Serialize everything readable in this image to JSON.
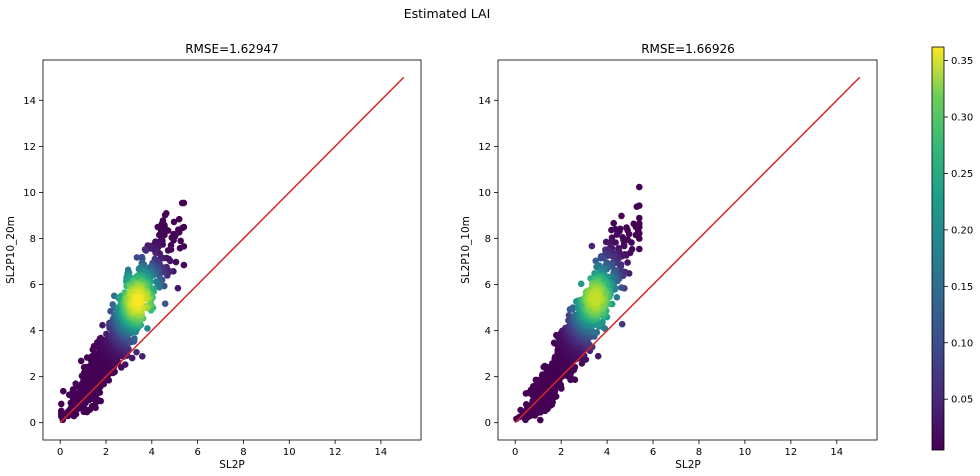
{
  "figure": {
    "suptitle": "Estimated LAI"
  },
  "colorbar": {
    "ticks": [
      0.05,
      0.1,
      0.15,
      0.2,
      0.25,
      0.3,
      0.35
    ],
    "tick_labels": [
      "0.05",
      "0.10",
      "0.15",
      "0.20",
      "0.25",
      "0.30",
      "0.35"
    ],
    "range": [
      0.005,
      0.362
    ],
    "colormap": "viridis"
  },
  "chart_data": [
    {
      "type": "scatter",
      "title": "RMSE=1.62947",
      "xlabel": "SL2P",
      "ylabel": "SL2P10_20m",
      "xlim": [
        -0.75,
        15.75
      ],
      "ylim": [
        -0.75,
        15.75
      ],
      "xticks": [
        0,
        2,
        4,
        6,
        8,
        10,
        12,
        14
      ],
      "yticks": [
        0,
        2,
        4,
        6,
        8,
        10,
        12,
        14
      ],
      "grid": false,
      "reference_line": {
        "x": [
          0,
          15
        ],
        "y": [
          0,
          15
        ],
        "color": "#d62728"
      },
      "cloud": {
        "ridge": [
          [
            0.3,
            0.4
          ],
          [
            1.5,
            2.0
          ],
          [
            2.5,
            3.8
          ],
          [
            3.3,
            5.2
          ],
          [
            4.3,
            7.0
          ],
          [
            5.3,
            8.2
          ]
        ],
        "peak": [
          3.4,
          5.3
        ],
        "color_range": [
          0.005,
          0.36
        ]
      }
    },
    {
      "type": "scatter",
      "title": "RMSE=1.66926",
      "xlabel": "SL2P",
      "ylabel": "SL2P10_10m",
      "xlim": [
        -0.75,
        15.75
      ],
      "ylim": [
        -0.75,
        15.75
      ],
      "xticks": [
        0,
        2,
        4,
        6,
        8,
        10,
        12,
        14
      ],
      "yticks": [
        0,
        2,
        4,
        6,
        8,
        10,
        12,
        14
      ],
      "grid": false,
      "reference_line": {
        "x": [
          0,
          15
        ],
        "y": [
          0,
          15
        ],
        "color": "#d62728"
      },
      "cloud": {
        "ridge": [
          [
            0.3,
            0.3
          ],
          [
            1.5,
            1.8
          ],
          [
            2.5,
            3.6
          ],
          [
            3.4,
            5.2
          ],
          [
            4.4,
            7.0
          ],
          [
            5.4,
            8.2
          ]
        ],
        "peak": [
          3.5,
          5.4
        ],
        "color_range": [
          0.005,
          0.33
        ]
      }
    }
  ]
}
